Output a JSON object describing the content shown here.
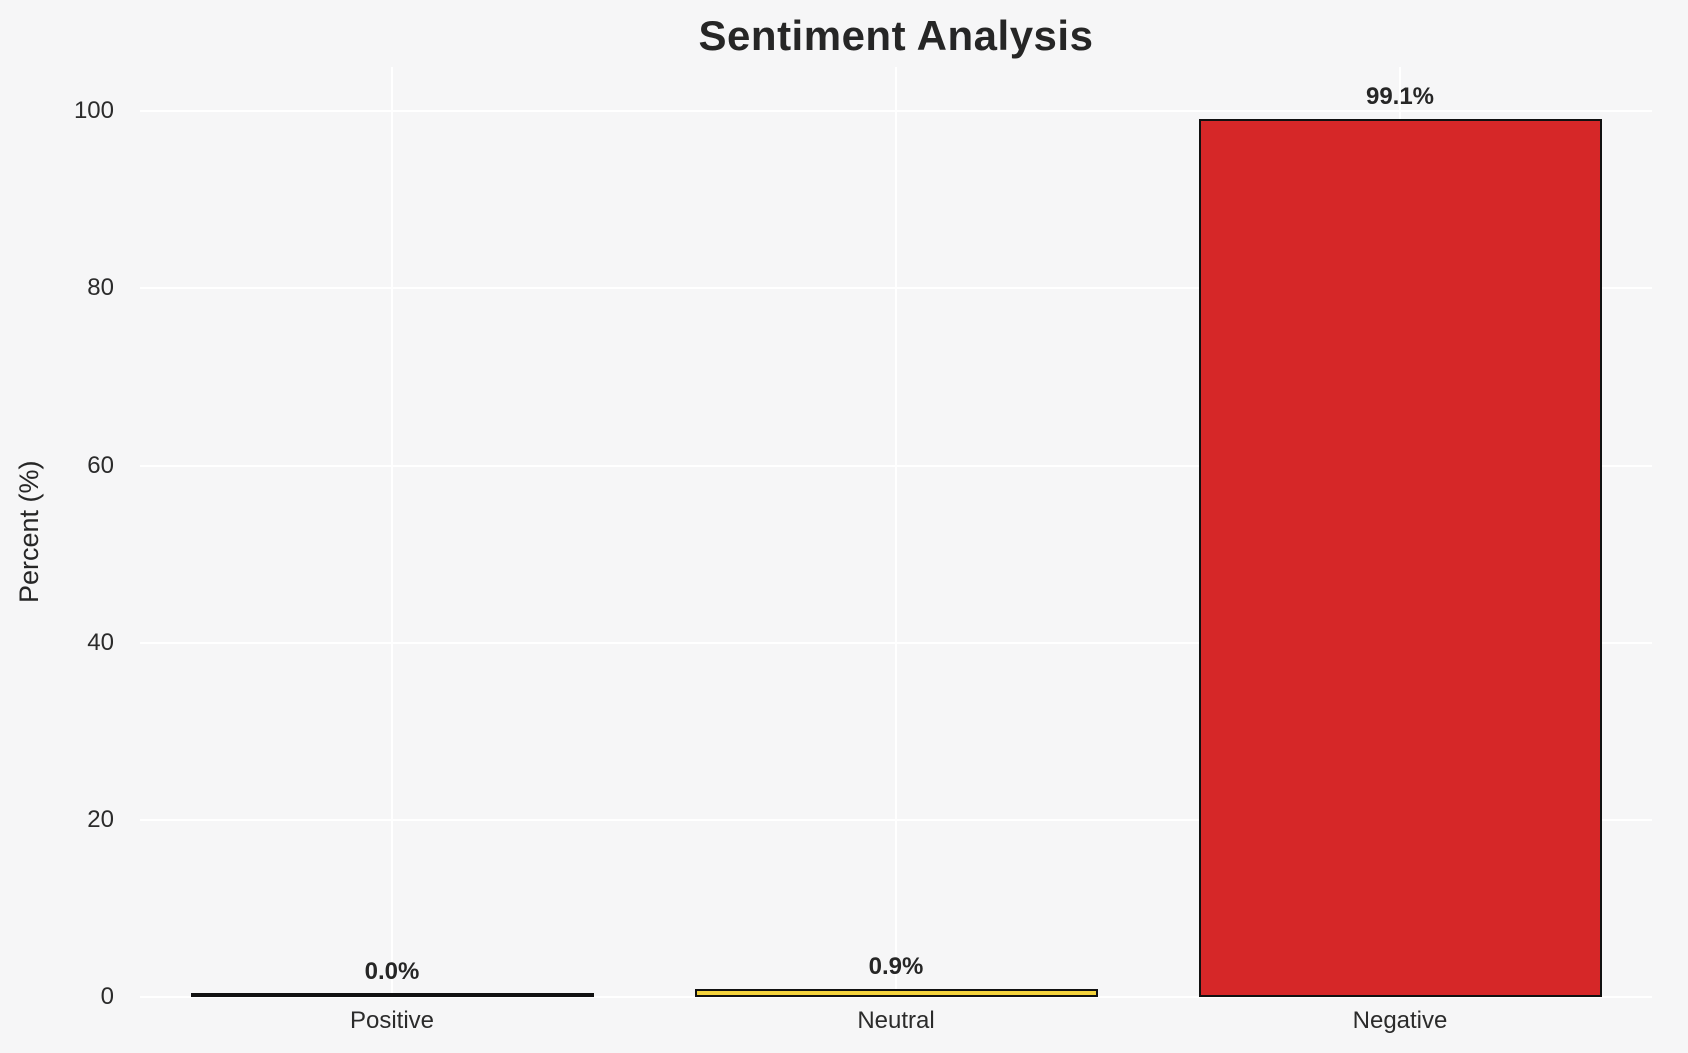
{
  "chart_data": {
    "type": "bar",
    "title": "Sentiment Analysis",
    "xlabel": "",
    "ylabel": "Percent (%)",
    "categories": [
      "Positive",
      "Neutral",
      "Negative"
    ],
    "values": [
      0.0,
      0.9,
      99.1
    ],
    "value_labels": [
      "0.0%",
      "0.9%",
      "99.1%"
    ],
    "bar_colors": [
      null,
      "#F4D33C",
      "#D62728"
    ],
    "bar_edge_color": "#111111",
    "yticks": [
      0,
      20,
      40,
      60,
      80,
      100
    ],
    "ytick_labels": [
      "0",
      "20",
      "40",
      "60",
      "80",
      "100"
    ],
    "ylim": [
      0,
      105
    ],
    "grid": "on",
    "grid_color": "#ffffff",
    "background_color": "#f6f6f7",
    "legend": "none"
  }
}
